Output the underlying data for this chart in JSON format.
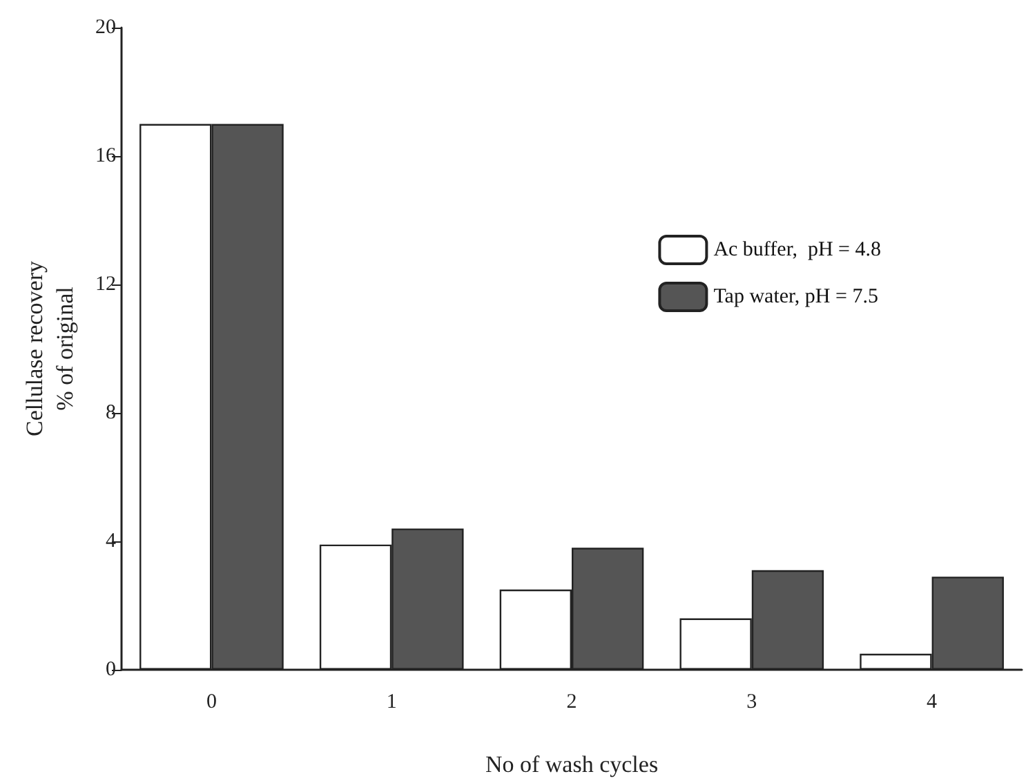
{
  "chart_data": {
    "type": "bar",
    "xlabel": "No of wash cycles",
    "ylabel": "Cellulase recovery\n% of original",
    "categories": [
      "0",
      "1",
      "2",
      "3",
      "4"
    ],
    "series": [
      {
        "name": "Ac buffer,  pH = 4.8",
        "color": "#ffffff",
        "values": [
          17.0,
          3.9,
          2.5,
          1.6,
          0.5
        ]
      },
      {
        "name": "Tap water, pH = 7.5",
        "color": "#555555",
        "values": [
          17.0,
          4.4,
          3.8,
          3.1,
          2.9
        ]
      }
    ],
    "ylim": [
      0,
      20
    ],
    "yticks": [
      0,
      4,
      8,
      12,
      16,
      20
    ],
    "grid": false,
    "legend": "top right"
  }
}
